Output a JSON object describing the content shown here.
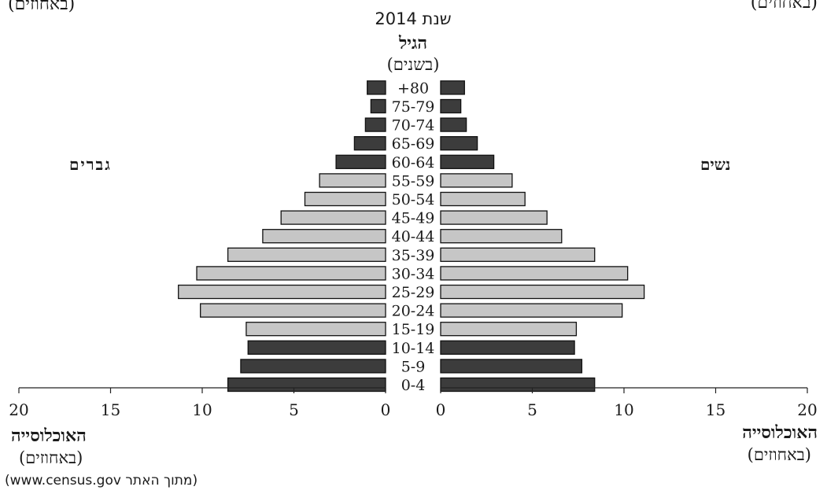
{
  "texts": {
    "top_left_partial": "(באחוזים)",
    "top_right_partial": "(באחוזים)",
    "year": "שנת 2014",
    "age_title": "הגיל",
    "age_unit": "(בשנים)",
    "men": "גברים",
    "women": "נשים",
    "population_left": "האוכלוסייה",
    "percent_left": "(באחוזים)",
    "population_right": "האוכלוסייה",
    "percent_right": "(באחוזים)",
    "source": "(מתוך האתר www.census.gov)"
  },
  "colors": {
    "dark_bar": "#3c3c3c",
    "light_bar": "#c6c6c6",
    "outline": "#111111"
  },
  "chart_data": {
    "type": "bar",
    "orientation": "population-pyramid",
    "categories": [
      "0-4",
      "5-9",
      "10-14",
      "15-19",
      "20-24",
      "25-29",
      "30-34",
      "35-39",
      "40-44",
      "45-49",
      "50-54",
      "55-59",
      "60-64",
      "65-69",
      "70-74",
      "75-79",
      "80+"
    ],
    "category_labels": [
      "0-4",
      "5-9",
      "10-14",
      "15-19",
      "20-24",
      "25-29",
      "30-34",
      "35-39",
      "40-44",
      "45-49",
      "50-54",
      "55-59",
      "60-64",
      "65-69",
      "70-74",
      "75-79",
      "+80"
    ],
    "shade": [
      "dark",
      "dark",
      "dark",
      "light",
      "light",
      "light",
      "light",
      "light",
      "light",
      "light",
      "light",
      "light",
      "dark",
      "dark",
      "dark",
      "dark",
      "dark"
    ],
    "series": [
      {
        "name": "גברים",
        "values": [
          8.6,
          7.9,
          7.5,
          7.6,
          10.1,
          11.3,
          10.3,
          8.6,
          6.7,
          5.7,
          4.4,
          3.6,
          2.7,
          1.7,
          1.1,
          0.8,
          1.0
        ]
      },
      {
        "name": "נשים",
        "values": [
          8.4,
          7.7,
          7.3,
          7.4,
          9.9,
          11.1,
          10.2,
          8.4,
          6.6,
          5.8,
          4.6,
          3.9,
          2.9,
          2.0,
          1.4,
          1.1,
          1.3
        ]
      }
    ],
    "xlim": [
      0,
      20
    ],
    "x_ticks": [
      0,
      5,
      10,
      15,
      20
    ],
    "grid": false
  }
}
